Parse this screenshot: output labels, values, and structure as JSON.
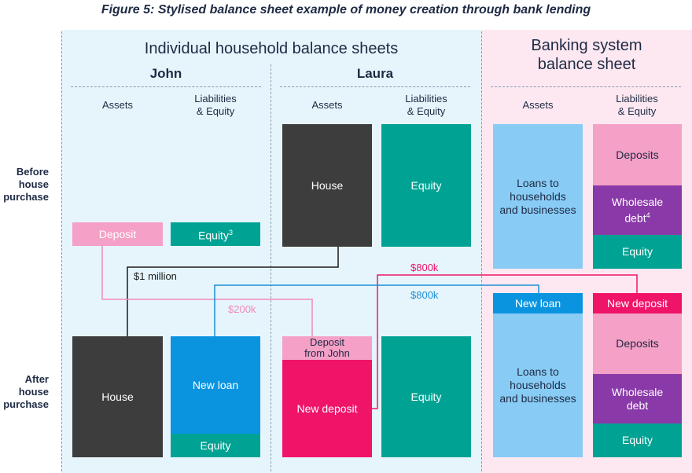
{
  "title": "Figure 5: Stylised balance sheet example of money creation through bank lending",
  "headers": {
    "household": "Individual household balance sheets",
    "bank": "Banking system\nbalance sheet",
    "john": "John",
    "laura": "Laura"
  },
  "columns": {
    "assets": "Assets",
    "liabilities": "Liabilities\n& Equity"
  },
  "rows": {
    "before": "Before\nhouse\npurchase",
    "after": "After\nhouse\npurchase"
  },
  "before": {
    "john_deposit": "Deposit",
    "john_equity": "Equity",
    "john_equity_note": "3",
    "laura_house": "House",
    "laura_equity": "Equity",
    "bank_loans": "Loans to\nhouseholds\nand businesses",
    "bank_deposits": "Deposits",
    "bank_wholesale": "Wholesale\ndebt",
    "bank_wholesale_note": "4",
    "bank_equity": "Equity"
  },
  "after": {
    "john_house": "House",
    "john_new_loan": "New loan",
    "john_equity": "Equity",
    "laura_deposit_from_john": "Deposit\nfrom John",
    "laura_new_deposit": "New deposit",
    "laura_equity": "Equity",
    "bank_new_loan": "New loan",
    "bank_loans": "Loans to\nhouseholds\nand businesses",
    "bank_new_deposit": "New deposit",
    "bank_deposits": "Deposits",
    "bank_wholesale": "Wholesale\ndebt",
    "bank_equity": "Equity"
  },
  "flows": {
    "house_value": "$1 million",
    "deposit_value": "$200k",
    "new_deposit_value": "$800k",
    "new_loan_value": "$800k"
  },
  "colors": {
    "house": "#3d3d3d",
    "equity": "#00a393",
    "deposit": "#f5a0c6",
    "loans": "#88ccf5",
    "new_loan": "#0a94e0",
    "new_deposit": "#ef1468",
    "wholesale": "#8a3aa8",
    "household_bg": "#e6f5fc",
    "bank_bg": "#fde8f1"
  }
}
